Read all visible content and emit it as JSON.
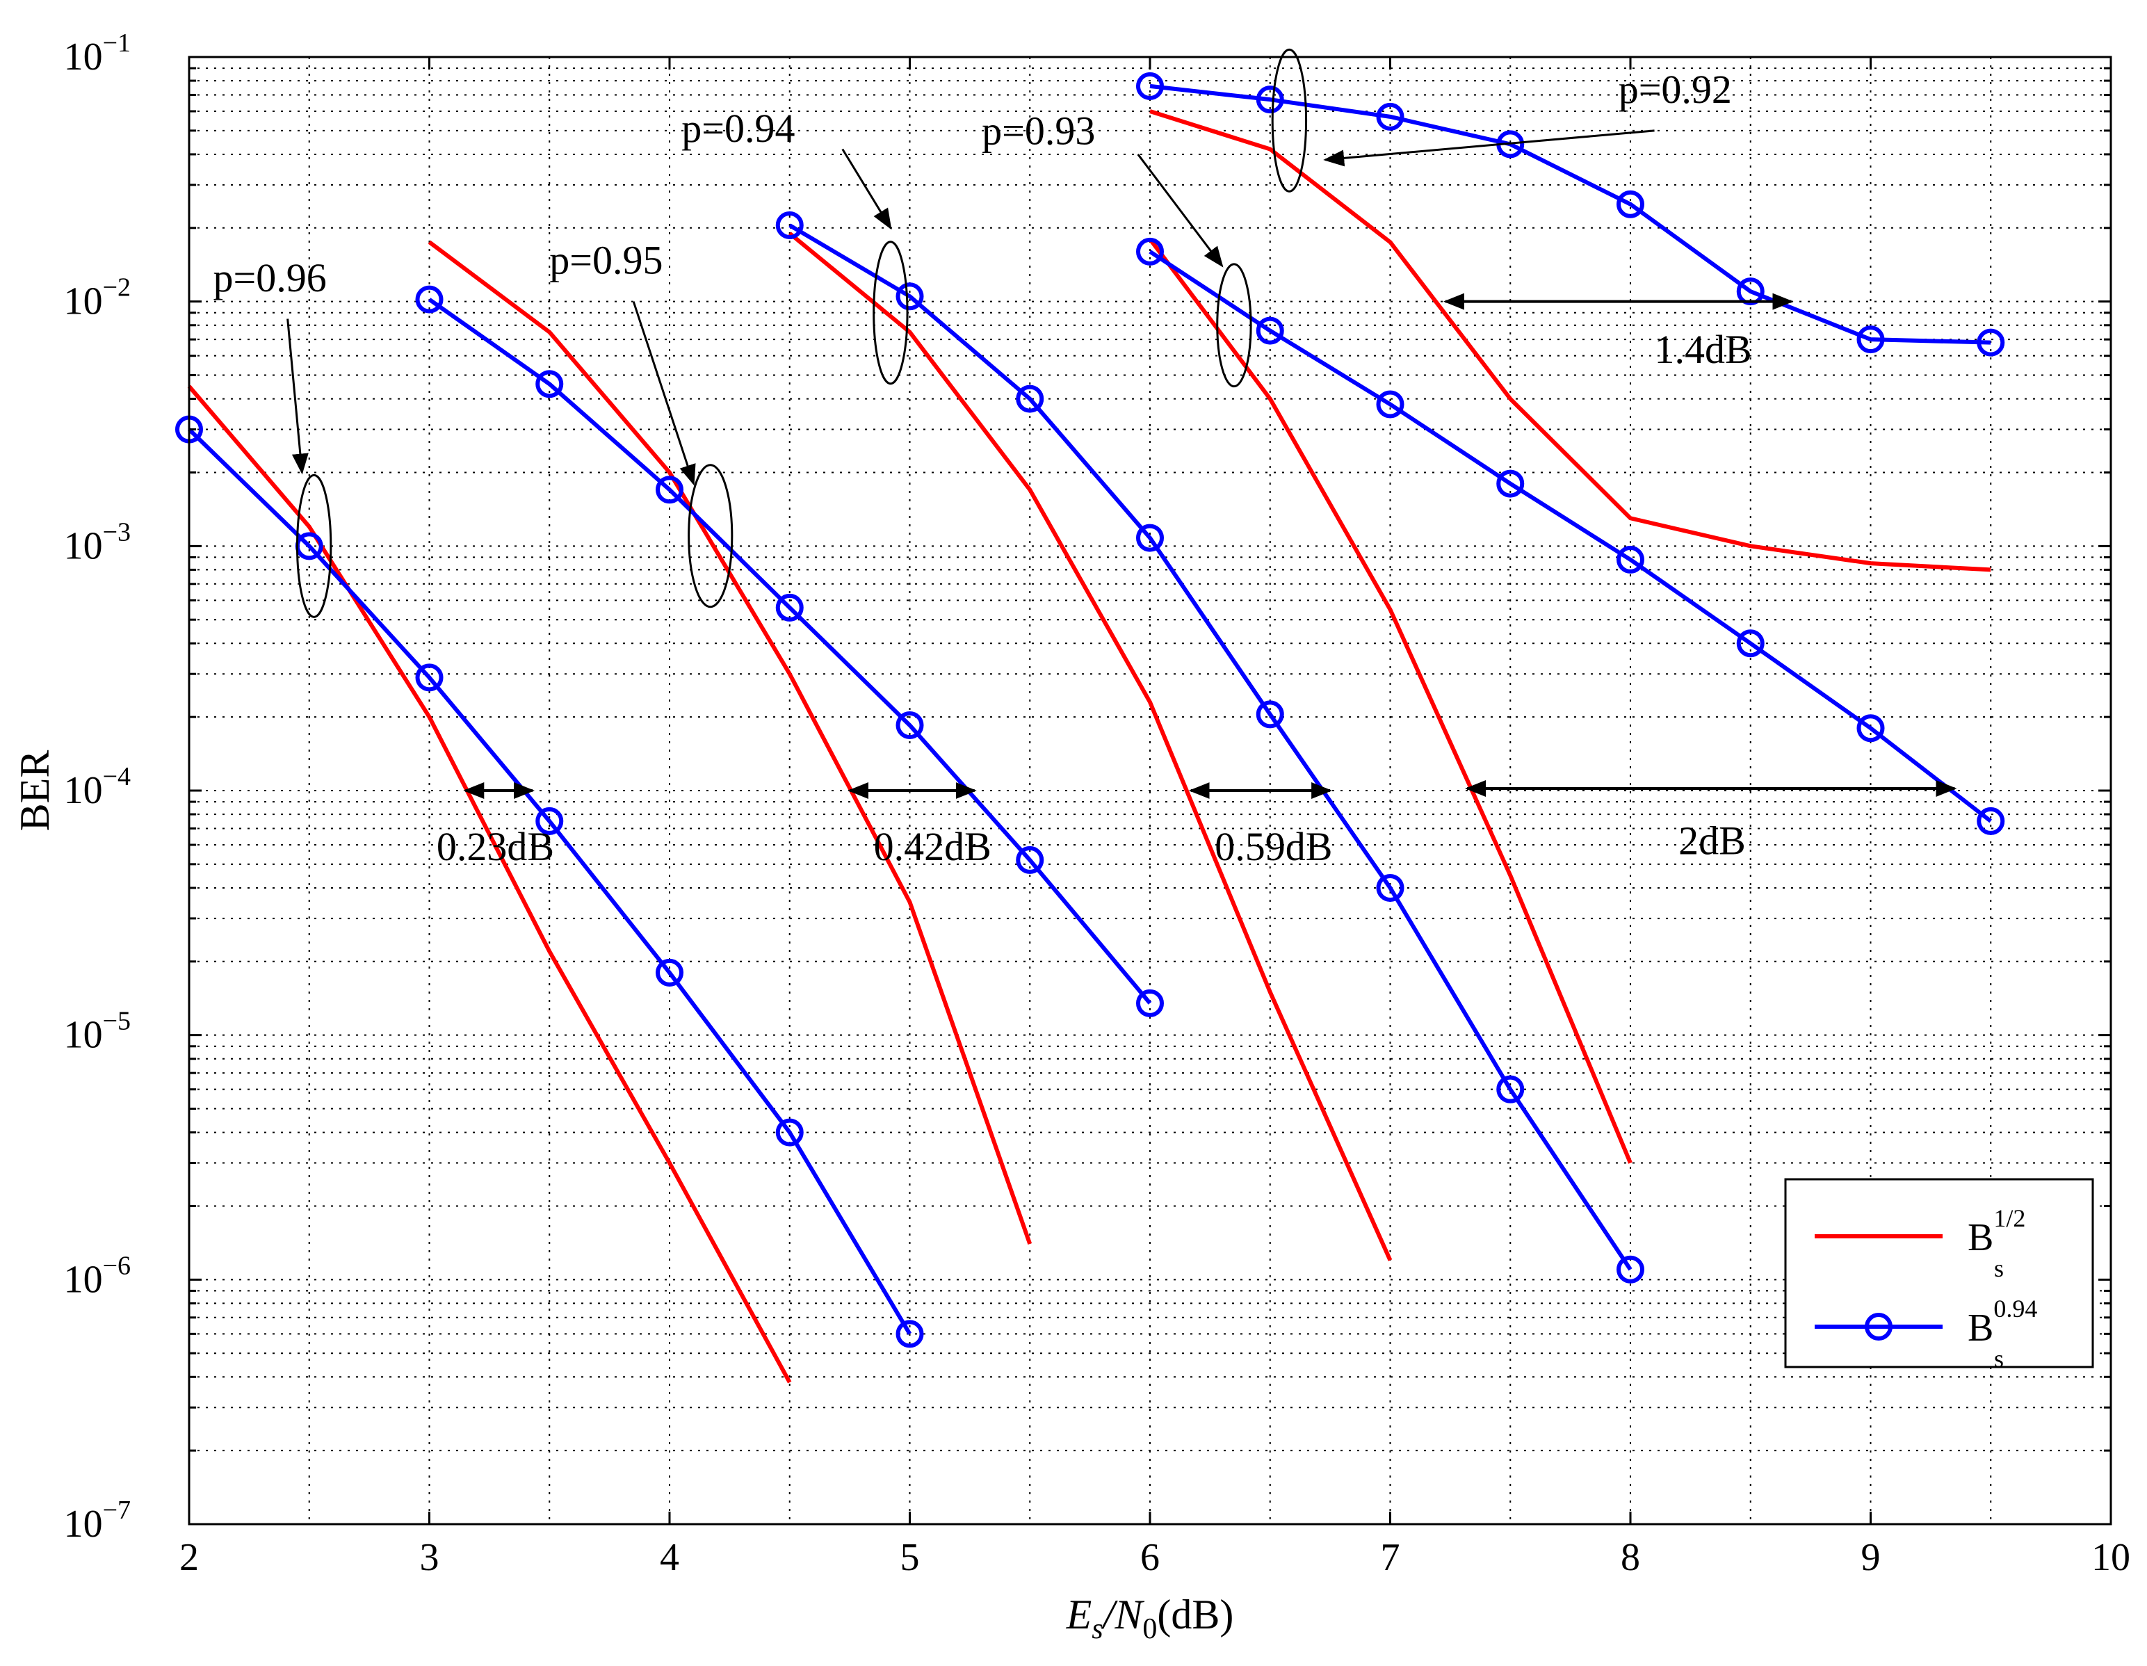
{
  "chart_data": {
    "type": "line",
    "title": "",
    "xlabel": {
      "base": "E",
      "sub": "s",
      "mid": "/N",
      "sub2": "0",
      "unit": "(dB)"
    },
    "ylabel": "BER",
    "xlim": [
      2,
      10
    ],
    "ylim_log10": [
      -7,
      -1
    ],
    "xticks": [
      2,
      3,
      4,
      5,
      6,
      7,
      8,
      9,
      10
    ],
    "xtick_labels": [
      "2",
      "3",
      "4",
      "5",
      "6",
      "7",
      "8",
      "9",
      "10"
    ],
    "yticks_log10": [
      -7,
      -6,
      -5,
      -4,
      -3,
      -2,
      -1
    ],
    "ytick_base": "10",
    "ytick_exps": [
      "−7",
      "−6",
      "−5",
      "−4",
      "−3",
      "−2",
      "−1"
    ],
    "grid": true,
    "colors": {
      "red": "#ff0000",
      "blue": "#0000ff"
    },
    "legend": {
      "placement": "bottom-right",
      "entries": [
        {
          "base": "B",
          "sub": "s",
          "sup": "1/2",
          "color": "#ff0000",
          "marker": "none"
        },
        {
          "base": "B",
          "sub": "s",
          "sup": "0.94",
          "color": "#0000ff",
          "marker": "circle"
        }
      ]
    },
    "series": [
      {
        "name": "p=0.96 B_s^1/2",
        "color": "#ff0000",
        "marker": "none",
        "x": [
          2,
          2.5,
          3,
          3.5,
          4,
          4.5
        ],
        "y": [
          0.0045,
          0.0012,
          0.0002,
          2.2e-05,
          3e-06,
          3.8e-07
        ]
      },
      {
        "name": "p=0.96 B_s^0.94",
        "color": "#0000ff",
        "marker": "circle",
        "x": [
          2,
          2.5,
          3,
          3.5,
          4,
          4.5,
          5
        ],
        "y": [
          0.003,
          0.001,
          0.00029,
          7.5e-05,
          1.8e-05,
          4e-06,
          6e-07
        ]
      },
      {
        "name": "p=0.95 B_s^1/2",
        "color": "#ff0000",
        "marker": "none",
        "x": [
          3,
          3.5,
          4,
          4.5,
          5,
          5.5
        ],
        "y": [
          0.0175,
          0.0075,
          0.002,
          0.0003,
          3.5e-05,
          1.4e-06
        ]
      },
      {
        "name": "p=0.95 B_s^0.94",
        "color": "#0000ff",
        "marker": "circle",
        "x": [
          3,
          3.5,
          4,
          4.5,
          5,
          5.5,
          6
        ],
        "y": [
          0.0102,
          0.0046,
          0.0017,
          0.00056,
          0.000185,
          5.2e-05,
          1.35e-05
        ]
      },
      {
        "name": "p=0.94 B_s^1/2",
        "color": "#ff0000",
        "marker": "none",
        "x": [
          4.5,
          5,
          5.5,
          6,
          6.5,
          7
        ],
        "y": [
          0.019,
          0.0075,
          0.0017,
          0.00023,
          1.5e-05,
          1.2e-06
        ]
      },
      {
        "name": "p=0.94 B_s^0.94",
        "color": "#0000ff",
        "marker": "circle",
        "x": [
          4.5,
          5,
          5.5,
          6,
          6.5,
          7,
          7.5,
          8
        ],
        "y": [
          0.0205,
          0.0105,
          0.004,
          0.00108,
          0.000205,
          4e-05,
          6e-06,
          1.1e-06
        ]
      },
      {
        "name": "p=0.93 B_s^1/2",
        "color": "#ff0000",
        "marker": "none",
        "x": [
          6,
          6.5,
          7,
          7.5,
          8
        ],
        "y": [
          0.018,
          0.004,
          0.00055,
          4.5e-05,
          3e-06
        ]
      },
      {
        "name": "p=0.93 B_s^0.94",
        "color": "#0000ff",
        "marker": "circle",
        "x": [
          6,
          6.5,
          7,
          7.5,
          8,
          8.5,
          9,
          9.5
        ],
        "y": [
          0.016,
          0.0076,
          0.0038,
          0.0018,
          0.00088,
          0.0004,
          0.00018,
          7.5e-05
        ]
      },
      {
        "name": "p=0.92 B_s^1/2",
        "color": "#ff0000",
        "marker": "none",
        "x": [
          6,
          6.5,
          7,
          7.5,
          8,
          8.5,
          9,
          9.5
        ],
        "y": [
          0.06,
          0.042,
          0.0175,
          0.004,
          0.0013,
          0.001,
          0.00085,
          0.0008
        ]
      },
      {
        "name": "p=0.92 B_s^0.94",
        "color": "#0000ff",
        "marker": "circle",
        "x": [
          6,
          6.5,
          7,
          7.5,
          8,
          8.5,
          9,
          9.5
        ],
        "y": [
          0.076,
          0.067,
          0.057,
          0.044,
          0.025,
          0.011,
          0.007,
          0.0068
        ]
      }
    ],
    "ellipses": [
      {
        "label": "p=0.96",
        "cx": 2.52,
        "cy": 0.001,
        "rx": 0.07,
        "decades": 0.29
      },
      {
        "label": "p=0.95",
        "cx": 4.17,
        "cy": 0.0011,
        "rx": 0.09,
        "decades": 0.29
      },
      {
        "label": "p=0.94",
        "cx": 4.92,
        "cy": 0.009,
        "rx": 0.07,
        "decades": 0.29
      },
      {
        "label": "p=0.93",
        "cx": 6.35,
        "cy": 0.008,
        "rx": 0.07,
        "decades": 0.25
      },
      {
        "label": "p=0.92",
        "cx": 6.58,
        "cy": 0.055,
        "rx": 0.07,
        "decades": 0.29
      }
    ],
    "annotations": [
      {
        "text": "p=0.96",
        "tx": 2.1,
        "ty": 0.011,
        "ax1": 2.41,
        "ay1": 0.0085,
        "ax2": 2.47,
        "ay2": 0.002
      },
      {
        "text": "p=0.95",
        "tx": 3.5,
        "ty": 0.013,
        "ax1": 3.85,
        "ay1": 0.01,
        "ax2": 4.1,
        "ay2": 0.0018
      },
      {
        "text": "p=0.94",
        "tx": 4.05,
        "ty": 0.045,
        "ax1": 4.72,
        "ay1": 0.042,
        "ax2": 4.92,
        "ay2": 0.02
      },
      {
        "text": "p=0.93",
        "tx": 5.3,
        "ty": 0.044,
        "ax1": 5.95,
        "ay1": 0.04,
        "ax2": 6.3,
        "ay2": 0.014
      },
      {
        "text": "p=0.92",
        "tx": 7.95,
        "ty": 0.065,
        "ax1": 8.1,
        "ay1": 0.05,
        "ax2": 6.73,
        "ay2": 0.038
      }
    ],
    "gaps": [
      {
        "text": "0.23dB",
        "x1": 3.15,
        "x2": 3.43,
        "y": 0.0001,
        "tx": 3.03,
        "ty": 5.2e-05
      },
      {
        "text": "0.42dB",
        "x1": 4.75,
        "x2": 5.27,
        "y": 0.0001,
        "tx": 4.85,
        "ty": 5.2e-05
      },
      {
        "text": "0.59dB",
        "x1": 6.17,
        "x2": 6.75,
        "y": 0.0001,
        "tx": 6.27,
        "ty": 5.2e-05
      },
      {
        "text": "2dB",
        "x1": 7.32,
        "x2": 9.35,
        "y": 0.000102,
        "tx": 8.2,
        "ty": 5.5e-05
      },
      {
        "text": "1.4dB",
        "x1": 7.23,
        "x2": 8.67,
        "y": 0.01,
        "tx": 8.1,
        "ty": 0.0056
      }
    ]
  }
}
